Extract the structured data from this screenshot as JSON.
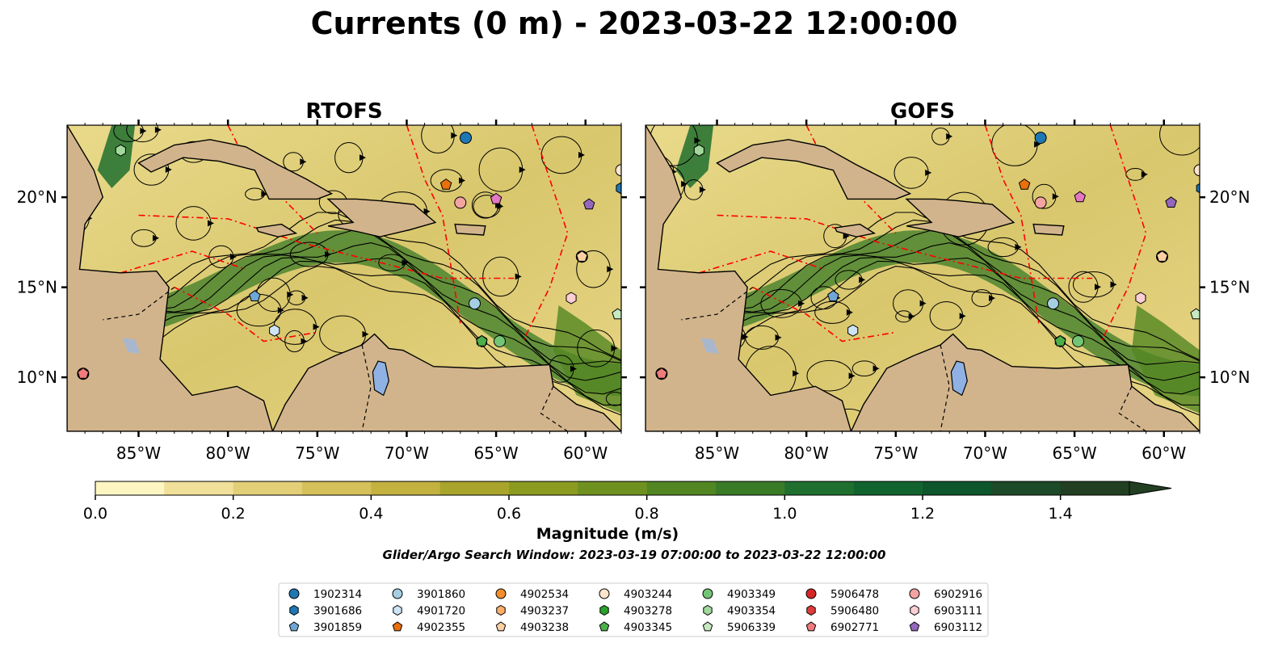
{
  "title": "Currents (0 m) - 2023-03-22 12:00:00",
  "panels": [
    {
      "name": "RTOFS"
    },
    {
      "name": "GOFS"
    }
  ],
  "lon_ticks": [
    "85°W",
    "80°W",
    "75°W",
    "70°W",
    "65°W",
    "60°W"
  ],
  "lat_ticks": [
    "20°N",
    "15°N",
    "10°N"
  ],
  "colorbar": {
    "label": "Magnitude (m/s)",
    "ticks": [
      "0.0",
      "0.2",
      "0.4",
      "0.6",
      "0.8",
      "1.0",
      "1.2",
      "1.4"
    ],
    "min": 0.0,
    "max": 1.5,
    "step": 0.1,
    "extend": "max",
    "colors": [
      "#fdf6c3",
      "#f0e09a",
      "#e2cf78",
      "#d6c05a",
      "#c3b240",
      "#a9a52c",
      "#8b9b1f",
      "#6f9120",
      "#528622",
      "#3a7b27",
      "#1f6f2e",
      "#12642f",
      "#0e562c",
      "#1d4a28",
      "#233f22"
    ]
  },
  "search_window": "Glider/Argo Search Window: 2023-03-19 07:00:00 to 2023-03-22 12:00:00",
  "chart_data": {
    "type": "map",
    "lon_range": [
      -89,
      -58
    ],
    "lat_range": [
      7,
      24
    ],
    "colors": {
      "land": "#d2b48c",
      "lake": "#8fb1e3",
      "eez": "#ff0000",
      "stream": "#000000"
    },
    "floats": [
      {
        "id": "1902314",
        "color": "#1f77b4",
        "marker": "circle",
        "rtofs": [
          -66.7,
          23.3
        ],
        "gofs": [
          -66.9,
          23.3
        ]
      },
      {
        "id": "3901686",
        "color": "#1f77b4",
        "marker": "hexagon",
        "rtofs": [
          -58.0,
          20.5
        ],
        "gofs": [
          -57.9,
          20.5
        ]
      },
      {
        "id": "3901859",
        "color": "#6fa6d6",
        "marker": "pentagon",
        "rtofs": [
          -78.5,
          14.5
        ],
        "gofs": [
          -78.5,
          14.5
        ]
      },
      {
        "id": "3901860",
        "color": "#a6cee3",
        "marker": "circle",
        "rtofs": [
          -66.2,
          14.1
        ],
        "gofs": [
          -66.2,
          14.1
        ]
      },
      {
        "id": "4901720",
        "color": "#cde4f4",
        "marker": "hexagon",
        "rtofs": [
          -77.4,
          12.6
        ],
        "gofs": [
          -77.4,
          12.6
        ]
      },
      {
        "id": "4902355",
        "color": "#e8710c",
        "marker": "pentagon",
        "rtofs": [
          -67.8,
          20.7
        ],
        "gofs": [
          -67.8,
          20.7
        ]
      },
      {
        "id": "4902534",
        "color": "#f28e2b",
        "marker": "circle",
        "rtofs": [
          -60.2,
          16.7
        ],
        "gofs": [
          -60.1,
          16.7
        ]
      },
      {
        "id": "4903237",
        "color": "#fdae6b",
        "marker": "hexagon",
        "rtofs": [
          -60.2,
          16.7
        ],
        "gofs": [
          -60.1,
          16.7
        ]
      },
      {
        "id": "4903238",
        "color": "#fdd0a2",
        "marker": "pentagon",
        "rtofs": [
          -60.2,
          16.7
        ],
        "gofs": [
          -60.1,
          16.7
        ]
      },
      {
        "id": "4903244",
        "color": "#fde5cc",
        "marker": "circle",
        "rtofs": [
          -58.0,
          21.5
        ],
        "gofs": [
          -58.0,
          21.5
        ]
      },
      {
        "id": "4903278",
        "color": "#2ca02c",
        "marker": "hexagon",
        "rtofs": [
          -65.8,
          12.0
        ],
        "gofs": [
          -65.8,
          12.0
        ]
      },
      {
        "id": "4903345",
        "color": "#4daf4a",
        "marker": "pentagon",
        "rtofs": [
          -65.8,
          12.0
        ],
        "gofs": [
          -65.8,
          12.0
        ]
      },
      {
        "id": "4903349",
        "color": "#74c476",
        "marker": "circle",
        "rtofs": [
          -64.8,
          12.0
        ],
        "gofs": [
          -64.8,
          12.0
        ]
      },
      {
        "id": "4903354",
        "color": "#a1d99b",
        "marker": "hexagon",
        "rtofs": [
          -86.0,
          22.6
        ],
        "gofs": [
          -86.0,
          22.6
        ]
      },
      {
        "id": "5906339",
        "color": "#c7e9c0",
        "marker": "pentagon",
        "rtofs": [
          -58.2,
          13.5
        ],
        "gofs": [
          -58.2,
          13.5
        ]
      },
      {
        "id": "5906478",
        "color": "#d62728",
        "marker": "circle",
        "rtofs": [
          -88.1,
          10.2
        ],
        "gofs": [
          -88.1,
          10.2
        ]
      },
      {
        "id": "5906480",
        "color": "#e03b3b",
        "marker": "hexagon",
        "rtofs": [
          -88.1,
          10.2
        ],
        "gofs": [
          -88.1,
          10.2
        ]
      },
      {
        "id": "6902771",
        "color": "#f07b7b",
        "marker": "pentagon",
        "rtofs": [
          -88.1,
          10.2
        ],
        "gofs": [
          -88.1,
          10.2
        ]
      },
      {
        "id": "6902916",
        "color": "#f4a3a3",
        "marker": "circle",
        "rtofs": [
          -67.0,
          19.7
        ],
        "gofs": [
          -66.9,
          19.7
        ]
      },
      {
        "id": "6903111",
        "color": "#fbcfd4",
        "marker": "hexagon",
        "rtofs": [
          -60.8,
          14.4
        ],
        "gofs": [
          -61.3,
          14.4
        ]
      },
      {
        "id": "6903112",
        "color": "#9467bd",
        "marker": "pentagon",
        "rtofs": [
          -59.8,
          19.6
        ],
        "gofs": [
          -59.6,
          19.7
        ]
      },
      {
        "id": "6903112-b",
        "color": "#e377c2",
        "marker": "pentagon",
        "rtofs": [
          -65.0,
          19.9
        ],
        "gofs": [
          -64.7,
          20.0
        ]
      }
    ],
    "legend_order": [
      "1902314",
      "3901686",
      "3901859",
      "3901860",
      "4901720",
      "4902355",
      "4902534",
      "4903237",
      "4903238",
      "4903244",
      "4903278",
      "4903345",
      "4903349",
      "4903354",
      "5906339",
      "5906478",
      "5906480",
      "6902771",
      "6902916",
      "6903111",
      "6903112"
    ]
  }
}
